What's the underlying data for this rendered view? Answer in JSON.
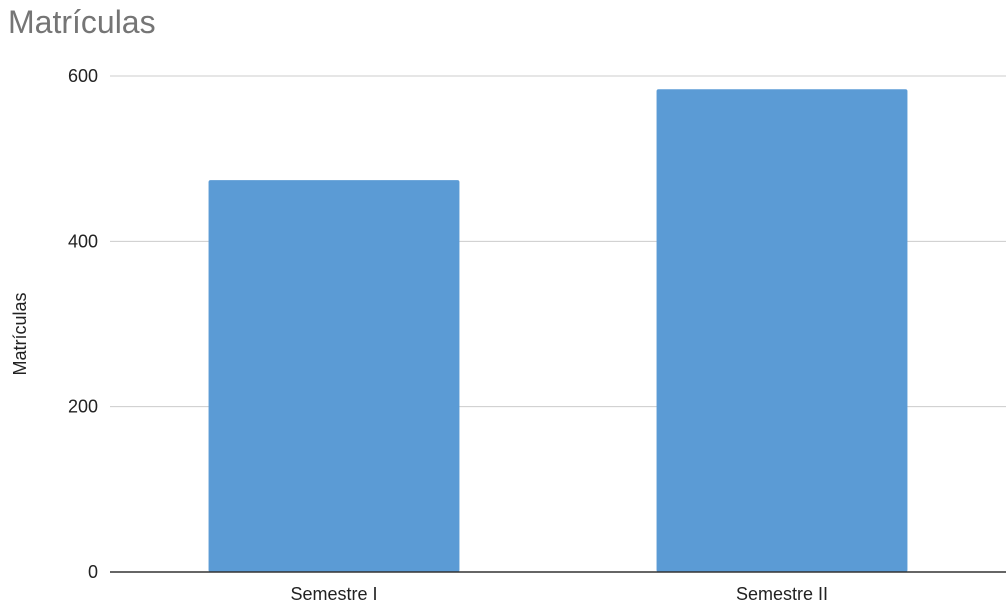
{
  "chart_data": {
    "type": "bar",
    "title": "Matrículas",
    "xlabel": "",
    "ylabel": "Matrículas",
    "categories": [
      "Semestre I",
      "Semestre II"
    ],
    "series": [
      {
        "values": [
          474,
          584
        ]
      }
    ],
    "ylim": [
      0,
      600
    ],
    "yticks": [
      0,
      200,
      400,
      600
    ],
    "grid": true,
    "legend": "none",
    "colors": {
      "bar": "#5b9bd5",
      "grid": "#cccccc",
      "axis": "#333333",
      "title": "#757575"
    }
  }
}
